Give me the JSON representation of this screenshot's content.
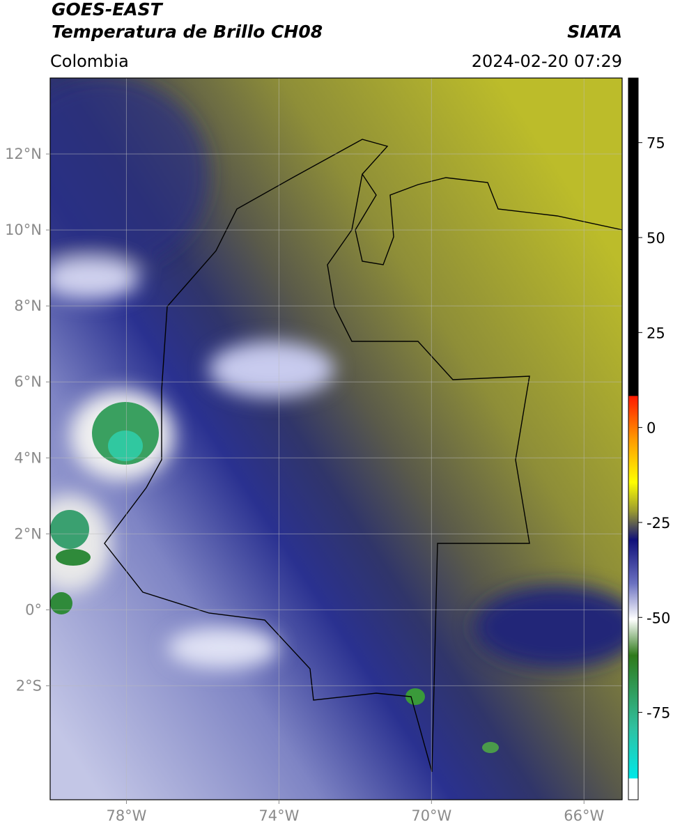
{
  "header": {
    "title": "GOES-EAST",
    "subtitle": "Temperatura de Brillo CH08",
    "source": "SIATA",
    "region": "Colombia",
    "datetime": "2024-02-20 07:29"
  },
  "map": {
    "lonlim": [
      -80,
      -65
    ],
    "latlim": [
      -5,
      14
    ],
    "lon_ticks": [
      {
        "value": -78,
        "label": "78°W"
      },
      {
        "value": -74,
        "label": "74°W"
      },
      {
        "value": -70,
        "label": "70°W"
      },
      {
        "value": -66,
        "label": "66°W"
      }
    ],
    "lat_ticks": [
      {
        "value": 12,
        "label": "12°N"
      },
      {
        "value": 10,
        "label": "10°N"
      },
      {
        "value": 8,
        "label": "8°N"
      },
      {
        "value": 6,
        "label": "6°N"
      },
      {
        "value": 4,
        "label": "4°N"
      },
      {
        "value": 2,
        "label": "2°N"
      },
      {
        "value": 0,
        "label": "0°"
      },
      {
        "value": -2,
        "label": "2°S"
      }
    ]
  },
  "colorbar": {
    "lim": [
      -98,
      92
    ],
    "ticks": [
      75,
      50,
      25,
      0,
      -25,
      -50,
      -75
    ]
  }
}
